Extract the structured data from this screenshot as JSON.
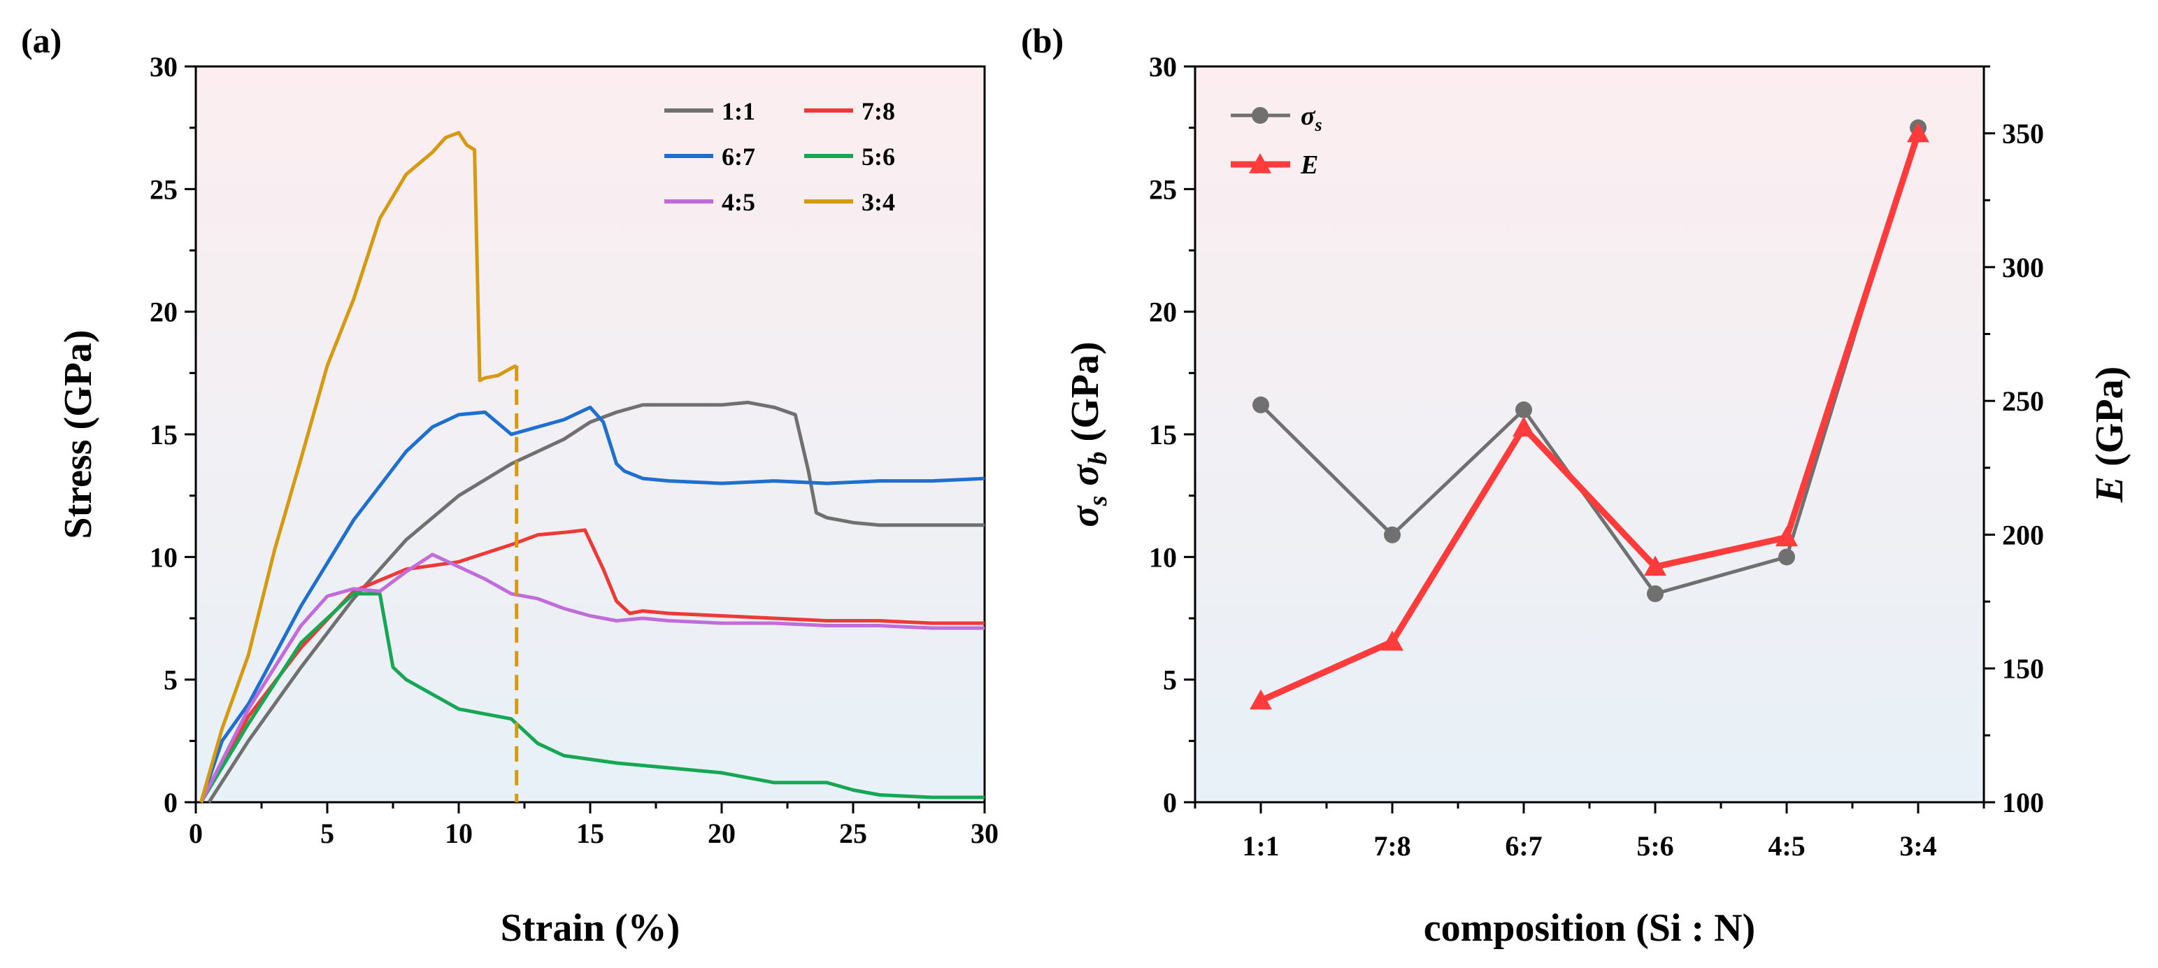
{
  "chart_data": [
    {
      "id": "a",
      "panel_label": "(a)",
      "type": "line",
      "xlabel": "Strain (%)",
      "ylabel": "Stress (GPa)",
      "xlim": [
        0,
        30
      ],
      "ylim": [
        0,
        30
      ],
      "xticks": [
        "0",
        "5",
        "10",
        "15",
        "20",
        "25",
        "30"
      ],
      "yticks": [
        "0",
        "5",
        "10",
        "15",
        "20",
        "25",
        "30"
      ],
      "legend": [
        "1:1",
        "7:8",
        "6:7",
        "5:6",
        "4:5",
        "3:4"
      ],
      "marker_line": {
        "x": 12.2,
        "y_top": 17.8,
        "color": "#D69A12"
      },
      "series": [
        {
          "name": "1:1",
          "color": "#707070",
          "x": [
            0.5,
            2,
            4,
            6,
            8,
            10,
            12,
            14,
            15,
            16,
            17,
            18,
            19,
            20,
            21,
            22,
            22.8,
            23.3,
            23.6,
            24,
            25,
            26,
            27,
            28,
            29,
            30
          ],
          "y": [
            0,
            2.5,
            5.5,
            8.3,
            10.7,
            12.5,
            13.8,
            14.8,
            15.5,
            15.9,
            16.2,
            16.2,
            16.2,
            16.2,
            16.3,
            16.1,
            15.8,
            13.5,
            11.8,
            11.6,
            11.4,
            11.3,
            11.3,
            11.3,
            11.3,
            11.3
          ]
        },
        {
          "name": "7:8",
          "color": "#EE3A37",
          "x": [
            0.2,
            2,
            4,
            6,
            8,
            10,
            12,
            13,
            14,
            14.8,
            15.5,
            16,
            16.5,
            17,
            18,
            20,
            22,
            24,
            26,
            28,
            30
          ],
          "y": [
            0,
            3.5,
            6.3,
            8.6,
            9.5,
            9.8,
            10.5,
            10.9,
            11.0,
            11.1,
            9.5,
            8.2,
            7.7,
            7.8,
            7.7,
            7.6,
            7.5,
            7.4,
            7.4,
            7.3,
            7.3
          ]
        },
        {
          "name": "6:7",
          "color": "#1F6FD1",
          "x": [
            0.2,
            1,
            2,
            4,
            6,
            8,
            9,
            10,
            11,
            12,
            13,
            14,
            15,
            15.5,
            16,
            16.3,
            17,
            18,
            20,
            22,
            24,
            26,
            28,
            30
          ],
          "y": [
            0,
            2.5,
            4.0,
            8.0,
            11.5,
            14.3,
            15.3,
            15.8,
            15.9,
            15.0,
            15.3,
            15.6,
            16.1,
            15.5,
            13.8,
            13.5,
            13.2,
            13.1,
            13.0,
            13.1,
            13.0,
            13.1,
            13.1,
            13.2
          ]
        },
        {
          "name": "5:6",
          "color": "#16A654",
          "x": [
            0.2,
            2,
            4,
            6,
            7,
            7.5,
            8,
            9,
            10,
            11,
            12,
            13,
            14,
            16,
            18,
            20,
            22,
            24,
            25,
            26,
            28,
            30
          ],
          "y": [
            0,
            3.2,
            6.5,
            8.5,
            8.5,
            5.5,
            5.0,
            4.4,
            3.8,
            3.6,
            3.4,
            2.4,
            1.9,
            1.6,
            1.4,
            1.2,
            0.8,
            0.8,
            0.5,
            0.3,
            0.2,
            0.2
          ]
        },
        {
          "name": "4:5",
          "color": "#C06CDB",
          "x": [
            0.2,
            2,
            4,
            5,
            6,
            7,
            8,
            9,
            10,
            11,
            12,
            13,
            14,
            15,
            16,
            17,
            18,
            20,
            22,
            24,
            26,
            28,
            30
          ],
          "y": [
            0,
            3.8,
            7.2,
            8.4,
            8.7,
            8.6,
            9.4,
            10.1,
            9.6,
            9.1,
            8.5,
            8.3,
            7.9,
            7.6,
            7.4,
            7.5,
            7.4,
            7.3,
            7.3,
            7.2,
            7.2,
            7.1,
            7.1
          ]
        },
        {
          "name": "3:4",
          "color": "#D69A12",
          "x": [
            0.2,
            1,
            2,
            3,
            4,
            5,
            6,
            7,
            8,
            9,
            9.5,
            10,
            10.3,
            10.6,
            10.8,
            11,
            11.5,
            12,
            12.2
          ],
          "y": [
            0,
            3.0,
            6.0,
            10.3,
            14.0,
            17.8,
            20.5,
            23.8,
            25.6,
            26.5,
            27.1,
            27.3,
            26.8,
            26.6,
            17.2,
            17.3,
            17.4,
            17.7,
            17.8
          ]
        }
      ]
    },
    {
      "id": "b",
      "panel_label": "(b)",
      "type": "line",
      "xlabel": "composition (Si : N)",
      "ylabel_left_main": "σ",
      "ylabel_left_sub1": "s",
      "ylabel_left_sub2": "b",
      "ylabel_left_suffix": "(GPa)",
      "ylabel_right_main": "E",
      "ylabel_right_suffix": "(GPa)",
      "categories": [
        "1:1",
        "7:8",
        "6:7",
        "5:6",
        "4:5",
        "3:4"
      ],
      "ylim_left": [
        0,
        30
      ],
      "ylim_right": [
        100,
        375
      ],
      "yticks_left": [
        "0",
        "5",
        "10",
        "15",
        "20",
        "25",
        "30"
      ],
      "yticks_right": [
        "100",
        "150",
        "200",
        "250",
        "300",
        "350"
      ],
      "legend": [
        {
          "main": "σ",
          "sub": "s",
          "color": "#707070",
          "marker": "circle"
        },
        {
          "main": "E",
          "sub": "",
          "color": "#FF3B3B",
          "marker": "triangle"
        }
      ],
      "series": [
        {
          "name": "σs",
          "axis": "left",
          "color": "#707070",
          "marker": "circle",
          "values": [
            16.2,
            10.9,
            16.0,
            8.5,
            10.0,
            27.5
          ]
        },
        {
          "name": "E",
          "axis": "right",
          "color": "#FF3B3B",
          "marker": "triangle",
          "values": [
            138,
            160,
            240,
            188,
            199,
            350
          ]
        }
      ]
    }
  ]
}
